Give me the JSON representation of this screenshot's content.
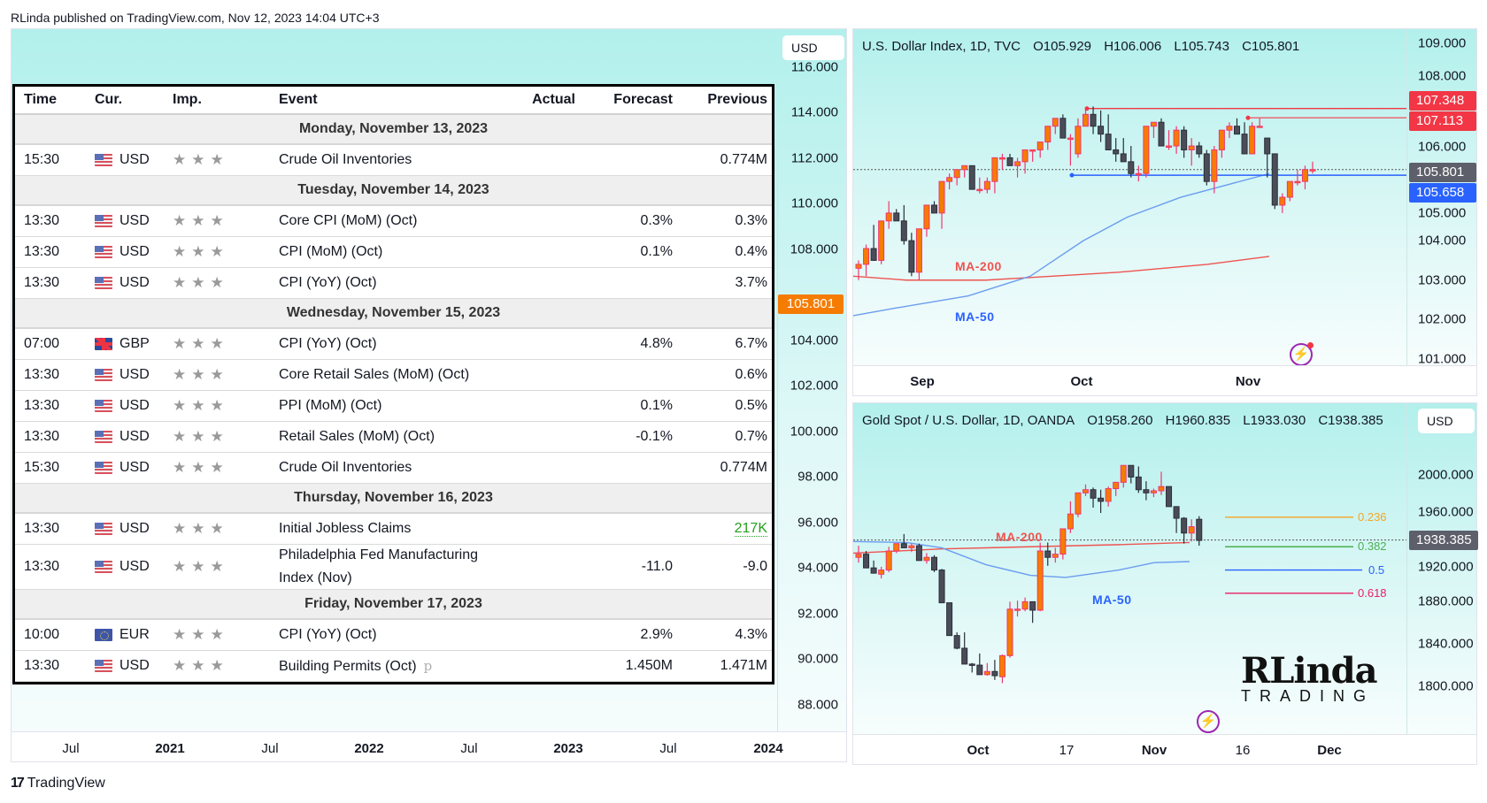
{
  "publish_line": "RLinda published on TradingView.com, Nov 12, 2023 14:04 UTC+3",
  "left_chart": {
    "currency": "USD",
    "current_price_badge": "105.801",
    "price_ticks": [
      "116.000",
      "114.000",
      "112.000",
      "110.000",
      "108.000",
      "104.000",
      "102.000",
      "100.000",
      "98.000",
      "96.000",
      "94.000",
      "92.000",
      "90.000",
      "88.000"
    ],
    "time_ticks": [
      {
        "label": "Jul",
        "bold": false
      },
      {
        "label": "2021",
        "bold": true
      },
      {
        "label": "Jul",
        "bold": false
      },
      {
        "label": "2022",
        "bold": true
      },
      {
        "label": "Jul",
        "bold": false
      },
      {
        "label": "2023",
        "bold": true
      },
      {
        "label": "Jul",
        "bold": false
      },
      {
        "label": "2024",
        "bold": true
      }
    ]
  },
  "calendar": {
    "headers": {
      "time": "Time",
      "cur": "Cur.",
      "imp": "Imp.",
      "event": "Event",
      "actual": "Actual",
      "forecast": "Forecast",
      "previous": "Previous"
    },
    "days": [
      {
        "label": "Monday, November 13, 2023",
        "rows": [
          {
            "time": "15:30",
            "flag": "us",
            "cur": "USD",
            "event": "Crude Oil Inventories",
            "actual": "",
            "forecast": "",
            "previous": "0.774M"
          }
        ]
      },
      {
        "label": "Tuesday, November 14, 2023",
        "rows": [
          {
            "time": "13:30",
            "flag": "us",
            "cur": "USD",
            "event": "Core CPI (MoM) (Oct)",
            "actual": "",
            "forecast": "0.3%",
            "previous": "0.3%"
          },
          {
            "time": "13:30",
            "flag": "us",
            "cur": "USD",
            "event": "CPI (MoM) (Oct)",
            "actual": "",
            "forecast": "0.1%",
            "previous": "0.4%"
          },
          {
            "time": "13:30",
            "flag": "us",
            "cur": "USD",
            "event": "CPI (YoY) (Oct)",
            "actual": "",
            "forecast": "",
            "previous": "3.7%"
          }
        ]
      },
      {
        "label": "Wednesday, November 15, 2023",
        "rows": [
          {
            "time": "07:00",
            "flag": "gb",
            "cur": "GBP",
            "event": "CPI (YoY) (Oct)",
            "actual": "",
            "forecast": "4.8%",
            "previous": "6.7%"
          },
          {
            "time": "13:30",
            "flag": "us",
            "cur": "USD",
            "event": "Core Retail Sales (MoM) (Oct)",
            "actual": "",
            "forecast": "",
            "previous": "0.6%"
          },
          {
            "time": "13:30",
            "flag": "us",
            "cur": "USD",
            "event": "PPI (MoM) (Oct)",
            "actual": "",
            "forecast": "0.1%",
            "previous": "0.5%"
          },
          {
            "time": "13:30",
            "flag": "us",
            "cur": "USD",
            "event": "Retail Sales (MoM) (Oct)",
            "actual": "",
            "forecast": "-0.1%",
            "previous": "0.7%"
          },
          {
            "time": "15:30",
            "flag": "us",
            "cur": "USD",
            "event": "Crude Oil Inventories",
            "actual": "",
            "forecast": "",
            "previous": "0.774M"
          }
        ]
      },
      {
        "label": "Thursday, November 16, 2023",
        "rows": [
          {
            "time": "13:30",
            "flag": "us",
            "cur": "USD",
            "event": "Initial Jobless Claims",
            "actual": "",
            "forecast": "",
            "previous": "217K",
            "previous_color": "green"
          },
          {
            "time": "13:30",
            "flag": "us",
            "cur": "USD",
            "event": "Philadelphia Fed Manufacturing Index (Nov)",
            "actual": "",
            "forecast": "-11.0",
            "previous": "-9.0",
            "tall": true
          }
        ]
      },
      {
        "label": "Friday, November 17, 2023",
        "rows": [
          {
            "time": "10:00",
            "flag": "eu",
            "cur": "EUR",
            "event": "CPI (YoY) (Oct)",
            "actual": "",
            "forecast": "2.9%",
            "previous": "4.3%"
          },
          {
            "time": "13:30",
            "flag": "us",
            "cur": "USD",
            "event": "Building Permits (Oct)",
            "preliminary_mark": "p",
            "actual": "",
            "forecast": "1.450M",
            "previous": "1.471M"
          }
        ]
      }
    ],
    "importance_stars": 3
  },
  "dxy_chart": {
    "legend": {
      "symbol": "U.S. Dollar Index, 1D, TVC",
      "open": "O105.929",
      "high": "H106.006",
      "low": "L105.743",
      "close": "C105.801"
    },
    "price_ticks": [
      "109.000",
      "108.000",
      "106.000",
      "105.000",
      "104.000",
      "103.000",
      "102.000",
      "101.000"
    ],
    "badges": [
      {
        "value": "107.348",
        "color": "#f23645"
      },
      {
        "value": "107.113",
        "color": "#f23645"
      },
      {
        "value": "105.801",
        "color": "#5d606b"
      },
      {
        "value": "105.658",
        "color": "#2962ff"
      }
    ],
    "ma_labels": {
      "ma200": "MA-200",
      "ma50": "MA-50"
    },
    "time_ticks": [
      "Sep",
      "Oct",
      "Nov"
    ]
  },
  "gold_chart": {
    "legend": {
      "symbol": "Gold Spot / U.S. Dollar, 1D, OANDA",
      "open": "O1958.260",
      "high": "H1960.835",
      "low": "L1933.030",
      "close": "C1938.385"
    },
    "currency": "USD",
    "price_ticks": [
      "2000.000",
      "1960.000",
      "1920.000",
      "1880.000",
      "1840.000",
      "1800.000"
    ],
    "current_price_badge": "1938.385",
    "ma_labels": {
      "ma200": "MA-200",
      "ma50": "MA-50"
    },
    "fib_levels": [
      {
        "label": "0.236",
        "color": "#f5a623"
      },
      {
        "label": "0.382",
        "color": "#4caf50"
      },
      {
        "label": "0.5",
        "color": "#2962ff"
      },
      {
        "label": "0.618",
        "color": "#e91e63"
      }
    ],
    "time_ticks": [
      {
        "label": "Oct",
        "bold": true
      },
      {
        "label": "17",
        "bold": false
      },
      {
        "label": "Nov",
        "bold": true
      },
      {
        "label": "16",
        "bold": false
      },
      {
        "label": "Dec",
        "bold": true
      }
    ]
  },
  "watermark": {
    "line1": "RLinda",
    "line2": "TRADING"
  },
  "footer": {
    "logo_mark": "17",
    "brand": "TradingView"
  },
  "colors": {
    "up_candle": "#f57c00",
    "up_border": "#f23670",
    "down_candle": "#4a4d57",
    "ma200": "#ef5350",
    "ma50": "#6b9cf0",
    "accent": "#b2f0ec"
  }
}
